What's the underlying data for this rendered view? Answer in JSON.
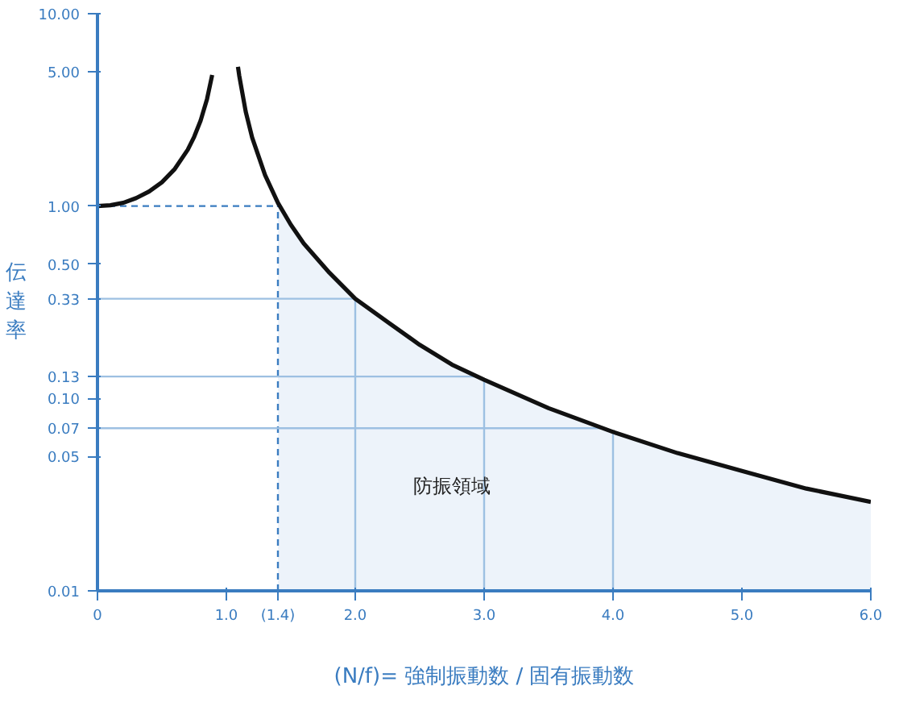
{
  "chart_data": {
    "type": "line",
    "xlabel": "(N/f)= 強制振動数 / 固有振動数",
    "ylabel": "伝達率",
    "log": "y",
    "grid": false,
    "marker": "none",
    "annotations": [
      "防振領域"
    ],
    "line_style": "solid",
    "xlim": [
      0,
      6
    ],
    "ylim": [
      0.01,
      10
    ],
    "xticks": [
      0,
      {
        "value": 1,
        "label": "1.0"
      },
      {
        "value": 1.4,
        "label": "(1.4)"
      },
      {
        "value": 2,
        "label": "2.0"
      },
      {
        "value": 3,
        "label": "3.0"
      },
      {
        "value": 4,
        "label": "4.0"
      },
      {
        "value": 5,
        "label": "5.0"
      },
      {
        "value": 6,
        "label": "6.0"
      }
    ],
    "yticks": [
      {
        "value": 0.01,
        "label": "0.01"
      },
      {
        "value": 0.05,
        "label": "0.05"
      },
      {
        "value": 0.07,
        "label": "0.07"
      },
      {
        "value": 0.1,
        "label": "0.10"
      },
      {
        "value": 0.13,
        "label": "0.13"
      },
      {
        "value": 0.33,
        "label": "0.33"
      },
      {
        "value": 0.5,
        "label": "0.50"
      },
      {
        "value": 1,
        "label": "1.00"
      },
      {
        "value": 5,
        "label": "5.00"
      },
      {
        "value": 10,
        "label": "10.00"
      }
    ],
    "x": [
      0,
      0.1,
      0.2,
      0.3,
      0.4,
      0.5,
      0.6,
      0.7,
      0.75,
      0.8,
      0.85,
      0.89,
      1.0,
      1.09,
      1.1,
      1.15,
      1.2,
      1.3,
      1.4,
      1.5,
      1.6,
      1.8,
      2.0,
      2.25,
      2.5,
      2.75,
      3.0,
      3.5,
      4.0,
      4.5,
      5.0,
      5.5,
      6.0
    ],
    "series": [
      {
        "type": "area",
        "color": "#edf3fa",
        "x": [
          1.4,
          1.5,
          1.6,
          1.8,
          2.0,
          2.25,
          2.5,
          2.75,
          3.0,
          3.5,
          4.0,
          4.5,
          5.0,
          5.5,
          6.0
        ],
        "values": [
          1.04,
          0.8,
          0.64,
          0.45,
          0.33,
          0.25,
          0.19,
          0.15,
          0.125,
          0.089,
          0.067,
          0.052,
          0.042,
          0.034,
          0.029
        ]
      },
      {
        "color": "#111111",
        "values": [
          1,
          1.01,
          1.04,
          1.1,
          1.19,
          1.33,
          1.56,
          1.96,
          2.29,
          2.78,
          3.6,
          4.8,
          null,
          5.3,
          4.76,
          3.1,
          2.27,
          1.45,
          1.04,
          0.8,
          0.64,
          0.45,
          0.33,
          0.25,
          0.19,
          0.15,
          0.125,
          0.089,
          0.067,
          0.052,
          0.042,
          0.034,
          0.029
        ]
      }
    ],
    "ref_lines": [
      {
        "axis": "x",
        "value": 1.4,
        "label": null,
        "color": "#3a7cc0",
        "line_style": "dashed"
      },
      {
        "axis": "y",
        "value": 1,
        "label": null,
        "color": "#3a7cc0",
        "line_style": "dashed"
      },
      {
        "axis": "y",
        "value": 0.33,
        "label": null,
        "color": "#9dc0e2",
        "line_style": "solid"
      },
      {
        "axis": "y",
        "value": 0.13,
        "label": null,
        "color": "#9dc0e2",
        "line_style": "solid"
      },
      {
        "axis": "y",
        "value": 0.07,
        "label": null,
        "color": "#9dc0e2",
        "line_style": "solid"
      },
      {
        "axis": "x",
        "value": 2,
        "label": null,
        "color": "#9dc0e2",
        "line_style": "solid"
      },
      {
        "axis": "x",
        "value": 3,
        "label": null,
        "color": "#9dc0e2",
        "line_style": "solid"
      },
      {
        "axis": "x",
        "value": 4,
        "label": null,
        "color": "#9dc0e2",
        "line_style": "solid"
      }
    ]
  }
}
